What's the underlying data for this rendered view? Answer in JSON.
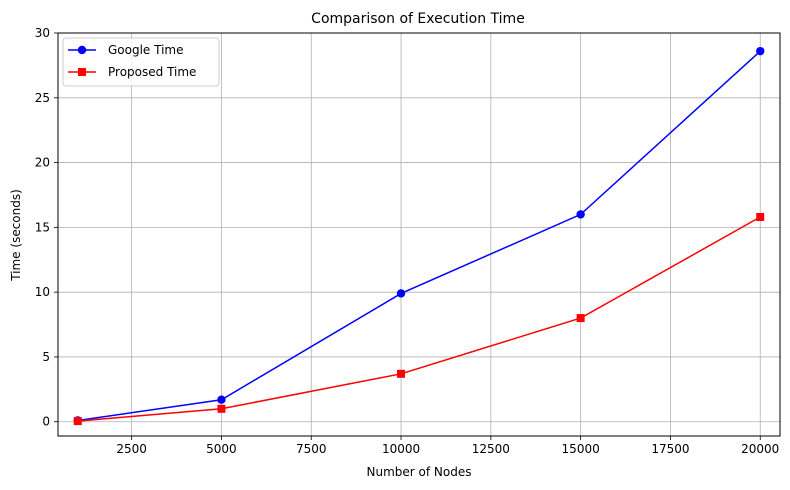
{
  "chart_data": {
    "type": "line",
    "title": "Comparison of Execution Time",
    "xlabel": "Number of Nodes",
    "ylabel": "Time (seconds)",
    "x": [
      1000,
      5000,
      10000,
      15000,
      20000
    ],
    "xlim": [
      450,
      20550
    ],
    "ylim": [
      -1.1,
      30
    ],
    "xticks": [
      2500,
      5000,
      7500,
      10000,
      12500,
      15000,
      17500,
      20000
    ],
    "yticks": [
      0,
      5,
      10,
      15,
      20,
      25,
      30
    ],
    "grid": true,
    "legend_position": "upper-left",
    "series": [
      {
        "name": "Google Time",
        "color": "#0000ff",
        "marker": "circle",
        "values": [
          0.1,
          1.7,
          9.9,
          16.0,
          28.6
        ]
      },
      {
        "name": "Proposed Time",
        "color": "#ff0000",
        "marker": "square",
        "values": [
          0.05,
          1.0,
          3.7,
          8.0,
          15.8
        ]
      }
    ]
  }
}
